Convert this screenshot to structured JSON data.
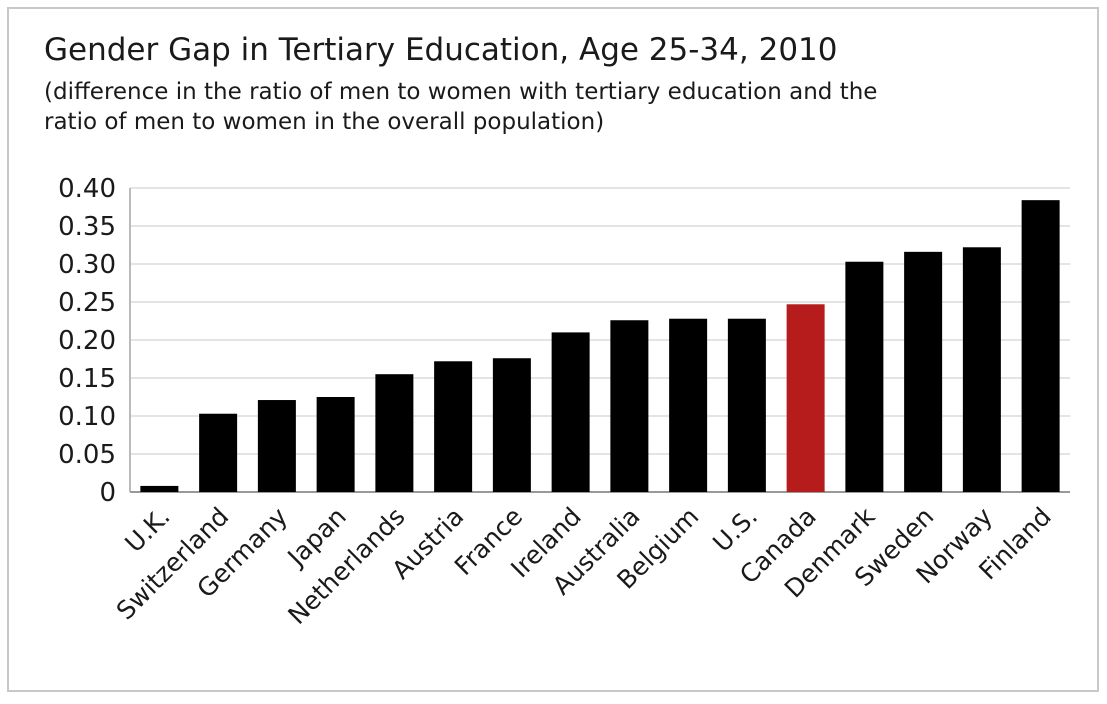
{
  "chart_data": {
    "type": "bar",
    "title": "Gender Gap in Tertiary Education, Age 25-34, 2010",
    "subtitle": [
      "(difference in the ratio of men to women with tertiary education and the",
      "ratio of men to women in the overall population)"
    ],
    "categories": [
      "U.K.",
      "Switzerland",
      "Germany",
      "Japan",
      "Netherlands",
      "Austria",
      "France",
      "Ireland",
      "Australia",
      "Belgium",
      "U.S.",
      "Canada",
      "Denmark",
      "Sweden",
      "Norway",
      "Finland"
    ],
    "values": [
      0.008,
      0.103,
      0.121,
      0.125,
      0.155,
      0.172,
      0.176,
      0.21,
      0.226,
      0.228,
      0.228,
      0.247,
      0.303,
      0.316,
      0.322,
      0.384
    ],
    "colors": [
      "#000000",
      "#000000",
      "#000000",
      "#000000",
      "#000000",
      "#000000",
      "#000000",
      "#000000",
      "#000000",
      "#000000",
      "#000000",
      "#b71c1c",
      "#000000",
      "#000000",
      "#000000",
      "#000000"
    ],
    "ylim": [
      0,
      0.4
    ],
    "yticks": [
      0,
      {
        "value": 0.05,
        "label": "0.05"
      },
      {
        "value": 0.1,
        "label": "0.10"
      },
      {
        "value": 0.15,
        "label": "0.15"
      },
      {
        "value": 0.2,
        "label": "0.20"
      },
      {
        "value": 0.25,
        "label": "0.25"
      },
      {
        "value": 0.3,
        "label": "0.30"
      },
      {
        "value": 0.35,
        "label": "0.35"
      },
      {
        "value": 0.4,
        "label": "0.40"
      }
    ],
    "grid": true
  }
}
